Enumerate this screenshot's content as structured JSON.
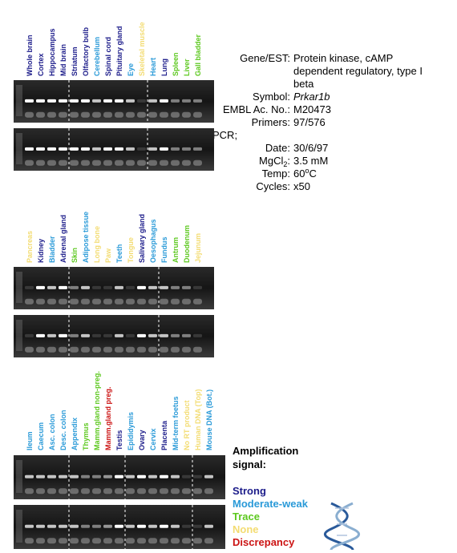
{
  "panels": [
    {
      "lanes": [
        {
          "label": "Whole brain",
          "signal": "strong"
        },
        {
          "label": "Cortex",
          "signal": "strong"
        },
        {
          "label": "Hippocampus",
          "signal": "strong"
        },
        {
          "label": "Mid brain",
          "signal": "strong"
        },
        {
          "label": "Striatum",
          "signal": "strong"
        },
        {
          "label": "Olfactory bulb",
          "signal": "strong"
        },
        {
          "label": "Cerebellum",
          "signal": "moderate"
        },
        {
          "label": "Spinal cord",
          "signal": "strong"
        },
        {
          "label": "Pituitary gland",
          "signal": "strong"
        },
        {
          "label": "Eye",
          "signal": "moderate"
        },
        {
          "label": "Skeletal muscle",
          "signal": "none"
        },
        {
          "label": "Heart",
          "signal": "moderate"
        },
        {
          "label": "Lung",
          "signal": "strong"
        },
        {
          "label": "Spleen",
          "signal": "trace"
        },
        {
          "label": "Liver",
          "signal": "trace"
        },
        {
          "label": "Gall bladder",
          "signal": "trace"
        }
      ]
    },
    {
      "lanes": [
        {
          "label": "Pancreas",
          "signal": "none"
        },
        {
          "label": "Kidney",
          "signal": "strong"
        },
        {
          "label": "Bladder",
          "signal": "moderate"
        },
        {
          "label": "Adrenal gland",
          "signal": "strong"
        },
        {
          "label": "Skin",
          "signal": "trace"
        },
        {
          "label": "Adipose tissue",
          "signal": "moderate"
        },
        {
          "label": "Long bone",
          "signal": "none"
        },
        {
          "label": "Paw",
          "signal": "none"
        },
        {
          "label": "Teeth",
          "signal": "moderate"
        },
        {
          "label": "Tongue",
          "signal": "none"
        },
        {
          "label": "Salivary gland",
          "signal": "strong"
        },
        {
          "label": "Oesophagus",
          "signal": "moderate"
        },
        {
          "label": "Fundus",
          "signal": "moderate"
        },
        {
          "label": "Antrum",
          "signal": "trace"
        },
        {
          "label": "Duodenum",
          "signal": "trace"
        },
        {
          "label": "Jejunum",
          "signal": "none"
        }
      ]
    },
    {
      "lanes": [
        {
          "label": "Ileum",
          "signal": "moderate"
        },
        {
          "label": "Caecum",
          "signal": "moderate"
        },
        {
          "label": "Asc. colon",
          "signal": "moderate"
        },
        {
          "label": "Desc. colon",
          "signal": "moderate"
        },
        {
          "label": "Appendix",
          "signal": "moderate"
        },
        {
          "label": "Thymus",
          "signal": "trace"
        },
        {
          "label": "Mamm.gland non-preg.",
          "signal": "trace"
        },
        {
          "label": "Mamm.gland preg.",
          "signal": "discrepancy"
        },
        {
          "label": "Testis",
          "signal": "strong"
        },
        {
          "label": "Epididymis",
          "signal": "moderate"
        },
        {
          "label": "Ovary",
          "signal": "strong"
        },
        {
          "label": "Cervix",
          "signal": "moderate"
        },
        {
          "label": "Placenta",
          "signal": "strong"
        },
        {
          "label": "Mid-term foetus",
          "signal": "moderate"
        },
        {
          "label": "No RT product",
          "signal": "none"
        },
        {
          "label": "Human DNA (Top)",
          "signal": "none"
        },
        {
          "label": "Mouse DNA (Bot.)",
          "signal": "moderate"
        }
      ]
    }
  ],
  "info": {
    "gene_label": "Gene/EST:",
    "gene_lines": [
      "Protein kinase, cAMP",
      "dependent regulatory, type I",
      "beta"
    ],
    "symbol_label": "Symbol:",
    "symbol": "Prkar1b",
    "embl_label": "EMBL Ac. No.:",
    "embl": "M20473",
    "primers_label": "Primers:",
    "primers": "97/576",
    "pcr_label": "PCR;",
    "date_label": "Date:",
    "date": "30/6/97",
    "mgcl_label": "MgCl",
    "mgcl_sub": "2",
    "mgcl_colon": ":",
    "mgcl": "3.5 mM",
    "temp_label": "Temp:",
    "temp": "60",
    "temp_sup": "o",
    "temp_unit": "C",
    "cycles_label": "Cycles:",
    "cycles": "x50"
  },
  "legend": {
    "title_lines": [
      "Amplification",
      "signal:"
    ],
    "entries": [
      {
        "key": "strong",
        "label": "Strong",
        "color": "#1c1c8a"
      },
      {
        "key": "moderate",
        "label": "Moderate-weak",
        "color": "#2a9ad8"
      },
      {
        "key": "trace",
        "label": "Trace",
        "color": "#5cc81e"
      },
      {
        "key": "none",
        "label": "None",
        "color": "#f3dc72"
      },
      {
        "key": "discrepancy",
        "label": "Discrepancy",
        "color": "#cc1414"
      }
    ]
  }
}
